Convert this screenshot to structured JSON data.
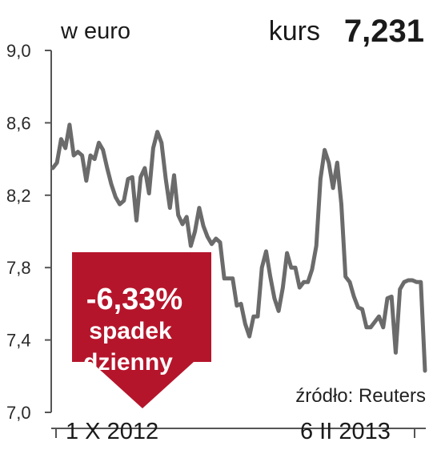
{
  "header": {
    "unit": "w euro",
    "kurs_label": "kurs",
    "kurs_value": "7,231"
  },
  "badge": {
    "change": "-6,33%",
    "line1": "spadek",
    "line2": "dzienny",
    "color": "#b5152b"
  },
  "source": "źródło: Reuters",
  "colors": {
    "line": "#6b6b6b",
    "axis": "#555555",
    "grid": "#d9d9d9",
    "badge": "#b5152b"
  },
  "chart_data": {
    "type": "line",
    "title": "",
    "xlabel": "",
    "ylabel": "w euro",
    "ylim": [
      7.0,
      9.0
    ],
    "y_ticks": [
      "9,0",
      "8,6",
      "8,2",
      "7,8",
      "7,4",
      "7,0"
    ],
    "y_tick_values": [
      9.0,
      8.6,
      8.2,
      7.8,
      7.4,
      7.0
    ],
    "x_labels": [
      "1 X 2012",
      "6 II 2013"
    ],
    "grid": false,
    "series": [
      {
        "values": [
          8.35,
          8.38,
          8.51,
          8.46,
          8.59,
          8.42,
          8.44,
          8.42,
          8.28,
          8.42,
          8.4,
          8.49,
          8.45,
          8.35,
          8.26,
          8.19,
          8.15,
          8.17,
          8.29,
          8.3,
          8.06,
          8.3,
          8.35,
          8.21,
          8.46,
          8.55,
          8.49,
          8.29,
          8.13,
          8.31,
          8.09,
          8.04,
          8.08,
          7.92,
          8.0,
          8.13,
          8.03,
          7.97,
          7.93,
          7.96,
          7.94,
          7.74,
          7.74,
          7.74,
          7.59,
          7.6,
          7.49,
          7.42,
          7.53,
          7.53,
          7.8,
          7.89,
          7.75,
          7.63,
          7.56,
          7.69,
          7.88,
          7.8,
          7.8,
          7.69,
          7.72,
          7.72,
          7.79,
          7.92,
          8.29,
          8.45,
          8.38,
          8.24,
          8.38,
          8.15,
          7.75,
          7.72,
          7.64,
          7.58,
          7.57,
          7.47,
          7.47,
          7.5,
          7.53,
          7.47,
          7.63,
          7.64,
          7.33,
          7.68,
          7.72,
          7.73,
          7.73,
          7.72,
          7.72,
          7.23
        ]
      }
    ]
  }
}
